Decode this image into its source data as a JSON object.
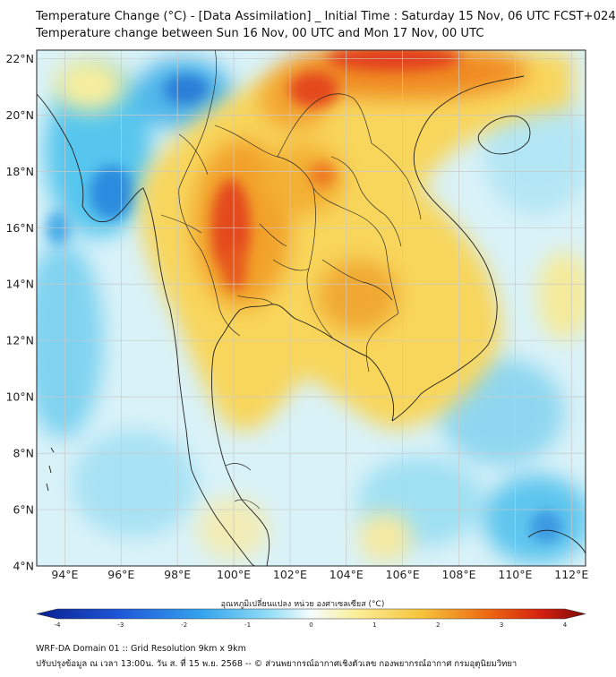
{
  "header": {
    "title_line1": "Temperature Change (°C) - [Data Assimilation] _ Initial Time : Saturday 15 Nov, 06 UTC FCST+024",
    "title_line2": "Temperature change between Sun 16 Nov, 00 UTC and Mon 17 Nov, 00 UTC"
  },
  "map": {
    "lat_labels": [
      "22°N",
      "20°N",
      "18°N",
      "16°N",
      "14°N",
      "12°N",
      "10°N",
      "8°N",
      "6°N",
      "4°N"
    ],
    "lon_labels": [
      "94°E",
      "96°E",
      "98°E",
      "100°E",
      "102°E",
      "104°E",
      "106°E",
      "108°E",
      "110°E",
      "112°E"
    ],
    "lat_range": [
      4,
      22.3
    ],
    "lon_range": [
      93,
      112.5
    ],
    "colors": {
      "ocean_base": "#d6f1f8",
      "cool_strong": "#1f6fd6",
      "cool_mid": "#38b5ea",
      "warm_light": "#fbe98a",
      "warm_mid": "#f6c43c",
      "warm_strong": "#ee6a12",
      "hot": "#e0321a",
      "coast": "#222222",
      "grid": "#c8c8c8"
    }
  },
  "colorbar": {
    "title": "อุณหภูมิเปลี่ยนแปลง หน่วย องศาเซลเซียส (°C)",
    "ticks": [
      "-4",
      "-3",
      "-2",
      "-1",
      "0",
      "1",
      "2",
      "3",
      "4"
    ],
    "range": [
      -4,
      4
    ]
  },
  "footer": {
    "line1": "WRF-DA Domain 01 :: Grid Resolution 9km x 9km",
    "line2": "ปรับปรุงข้อมูล ณ เวลา 13:00น. วัน ส. ที่ 15 พ.ย. 2568 -- © ส่วนพยากรณ์อากาศเชิงตัวเลข กองพยากรณ์อากาศ กรมอุตุนิยมวิทยา"
  }
}
